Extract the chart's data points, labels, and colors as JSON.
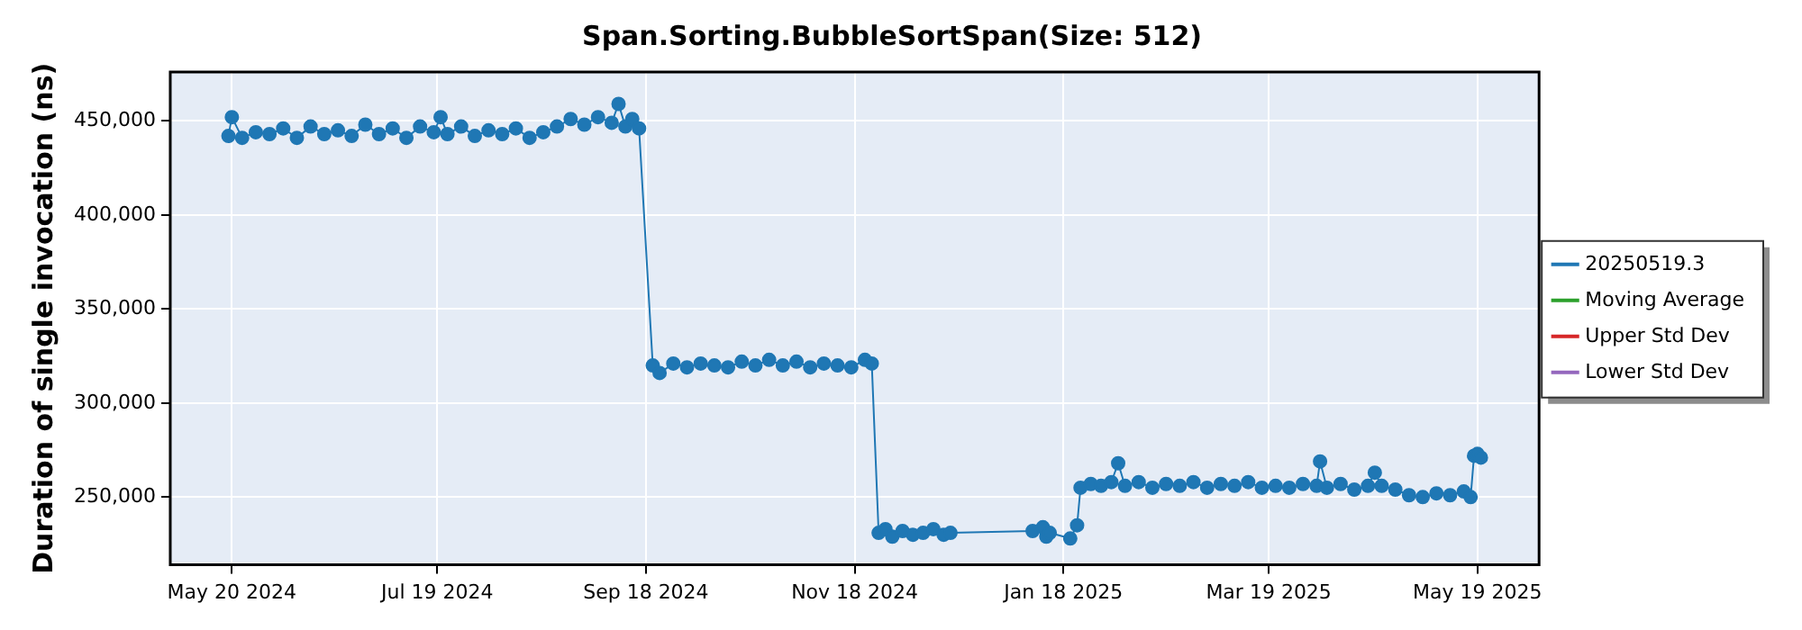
{
  "chart_data": {
    "type": "line",
    "title": "Span.Sorting.BubbleSortSpan(Size: 512)",
    "ylabel": "Duration of single invocation (ns)",
    "xlim": [
      "2024-05-02",
      "2025-06-06"
    ],
    "xticks": [
      {
        "value": "2024-05-20",
        "label": "May 20 2024"
      },
      {
        "value": "2024-07-19",
        "label": "Jul 19 2024"
      },
      {
        "value": "2024-09-18",
        "label": "Sep 18 2024"
      },
      {
        "value": "2024-11-18",
        "label": "Nov 18 2024"
      },
      {
        "value": "2025-01-18",
        "label": "Jan 18 2025"
      },
      {
        "value": "2025-03-19",
        "label": "Mar 19 2025"
      },
      {
        "value": "2025-05-19",
        "label": "May 19 2025"
      }
    ],
    "ylim": [
      214000,
      476000
    ],
    "yticks": [
      {
        "value": 250000,
        "label": "250,000"
      },
      {
        "value": 300000,
        "label": "300,000"
      },
      {
        "value": 350000,
        "label": "350,000"
      },
      {
        "value": 400000,
        "label": "400,000"
      },
      {
        "value": 450000,
        "label": "450,000"
      }
    ],
    "grid": true,
    "legend": "right",
    "marker": "circle",
    "line_style": "solid",
    "series": [
      {
        "name": "20250519.3",
        "color": "#1f77b4",
        "x": [
          "2024-05-19",
          "2024-05-20",
          "2024-05-23",
          "2024-05-27",
          "2024-05-31",
          "2024-06-04",
          "2024-06-08",
          "2024-06-12",
          "2024-06-16",
          "2024-06-20",
          "2024-06-24",
          "2024-06-28",
          "2024-07-02",
          "2024-07-06",
          "2024-07-10",
          "2024-07-14",
          "2024-07-18",
          "2024-07-20",
          "2024-07-22",
          "2024-07-26",
          "2024-07-30",
          "2024-08-03",
          "2024-08-07",
          "2024-08-11",
          "2024-08-15",
          "2024-08-19",
          "2024-08-23",
          "2024-08-27",
          "2024-08-31",
          "2024-09-04",
          "2024-09-08",
          "2024-09-10",
          "2024-09-12",
          "2024-09-14",
          "2024-09-16",
          "2024-09-20",
          "2024-09-22",
          "2024-09-26",
          "2024-09-30",
          "2024-10-04",
          "2024-10-08",
          "2024-10-12",
          "2024-10-16",
          "2024-10-20",
          "2024-10-24",
          "2024-10-28",
          "2024-11-01",
          "2024-11-05",
          "2024-11-09",
          "2024-11-13",
          "2024-11-17",
          "2024-11-21",
          "2024-11-23",
          "2024-11-25",
          "2024-11-27",
          "2024-11-29",
          "2024-12-02",
          "2024-12-05",
          "2024-12-08",
          "2024-12-11",
          "2024-12-14",
          "2024-12-16",
          "2025-01-09",
          "2025-01-12",
          "2025-01-13",
          "2025-01-14",
          "2025-01-20",
          "2025-01-22",
          "2025-01-23",
          "2025-01-26",
          "2025-01-29",
          "2025-02-01",
          "2025-02-03",
          "2025-02-05",
          "2025-02-09",
          "2025-02-13",
          "2025-02-17",
          "2025-02-21",
          "2025-02-25",
          "2025-03-01",
          "2025-03-05",
          "2025-03-09",
          "2025-03-13",
          "2025-03-17",
          "2025-03-21",
          "2025-03-25",
          "2025-03-29",
          "2025-04-02",
          "2025-04-03",
          "2025-04-05",
          "2025-04-09",
          "2025-04-13",
          "2025-04-17",
          "2025-04-19",
          "2025-04-21",
          "2025-04-25",
          "2025-04-29",
          "2025-05-03",
          "2025-05-07",
          "2025-05-11",
          "2025-05-15",
          "2025-05-17",
          "2025-05-18",
          "2025-05-19",
          "2025-05-20"
        ],
        "values": [
          442000,
          452000,
          441000,
          444000,
          443000,
          446000,
          441000,
          447000,
          443000,
          445000,
          442000,
          448000,
          443000,
          446000,
          441000,
          447000,
          444000,
          452000,
          443000,
          447000,
          442000,
          445000,
          443000,
          446000,
          441000,
          444000,
          447000,
          451000,
          448000,
          452000,
          449000,
          459000,
          447000,
          451000,
          446000,
          320000,
          316000,
          321000,
          319000,
          321000,
          320000,
          319000,
          322000,
          320000,
          323000,
          320000,
          322000,
          319000,
          321000,
          320000,
          319000,
          323000,
          321000,
          231000,
          233000,
          229000,
          232000,
          230000,
          231000,
          233000,
          230000,
          231000,
          232000,
          234000,
          229000,
          231000,
          228000,
          235000,
          255000,
          257000,
          256000,
          258000,
          268000,
          256000,
          258000,
          255000,
          257000,
          256000,
          258000,
          255000,
          257000,
          256000,
          258000,
          255000,
          256000,
          255000,
          257000,
          256000,
          269000,
          255000,
          257000,
          254000,
          256000,
          263000,
          256000,
          254000,
          251000,
          250000,
          252000,
          251000,
          253000,
          250000,
          272000,
          273000,
          271000
        ]
      },
      {
        "name": "Moving Average",
        "color": "#2ca02c"
      },
      {
        "name": "Upper Std Dev",
        "color": "#d62728"
      },
      {
        "name": "Lower Std Dev",
        "color": "#9467bd"
      }
    ]
  }
}
